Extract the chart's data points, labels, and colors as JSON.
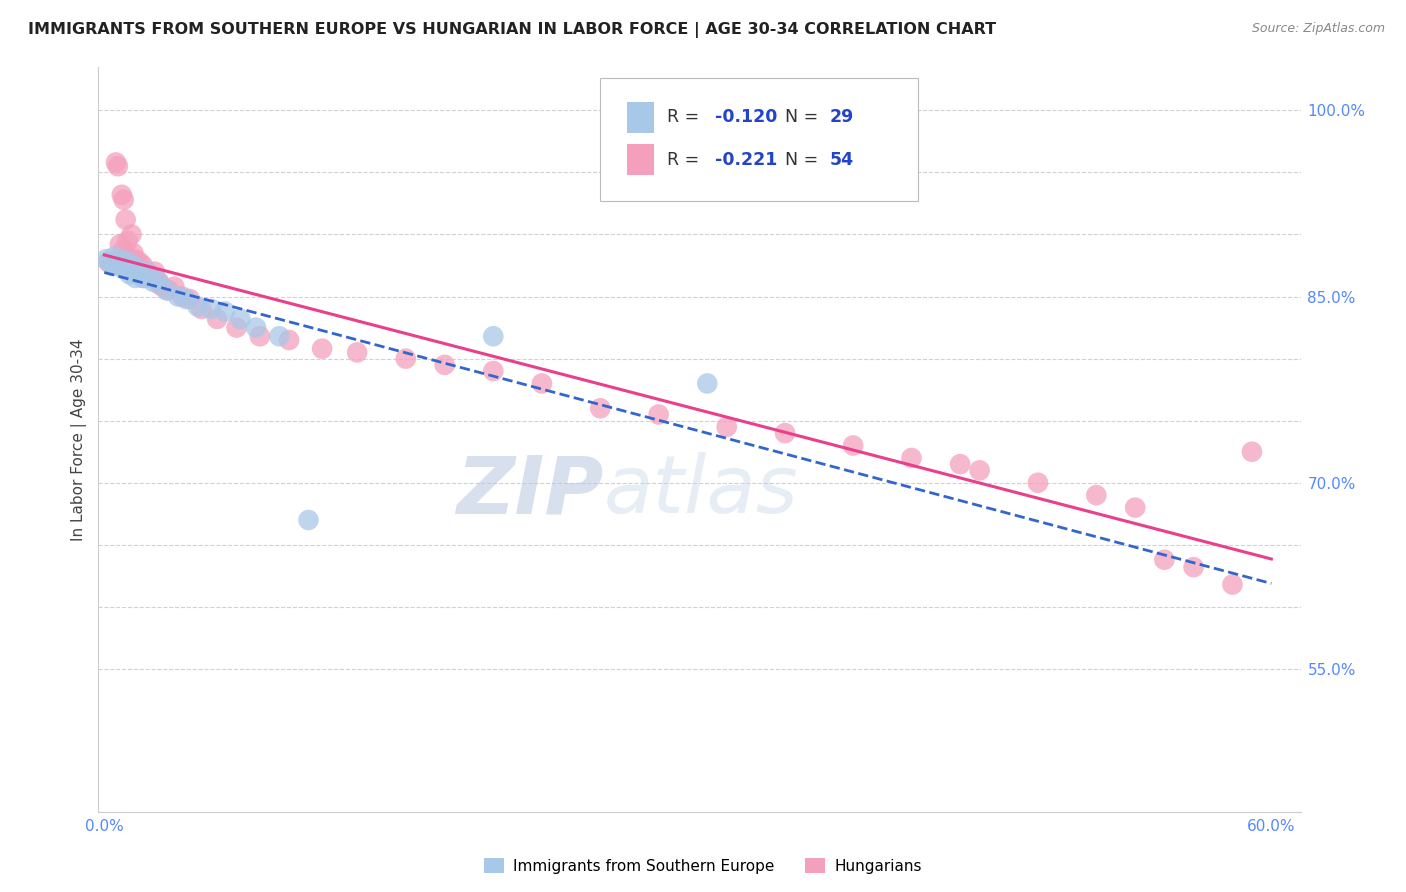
{
  "title": "IMMIGRANTS FROM SOUTHERN EUROPE VS HUNGARIAN IN LABOR FORCE | AGE 30-34 CORRELATION CHART",
  "source": "Source: ZipAtlas.com",
  "ylabel": "In Labor Force | Age 30-34",
  "xlim": [
    -0.003,
    0.615
  ],
  "ylim": [
    0.435,
    1.035
  ],
  "xtick_positions": [
    0.0,
    0.1,
    0.2,
    0.3,
    0.4,
    0.5,
    0.6
  ],
  "xticklabels": [
    "0.0%",
    "",
    "",
    "",
    "",
    "",
    "60.0%"
  ],
  "ytick_right_positions": [
    0.55,
    0.6,
    0.65,
    0.7,
    0.75,
    0.8,
    0.85,
    0.9,
    0.95,
    1.0
  ],
  "ytick_right_labels": [
    "55.0%",
    "",
    "",
    "70.0%",
    "",
    "",
    "85.0%",
    "",
    "",
    "100.0%"
  ],
  "blue_color": "#a8c8e8",
  "pink_color": "#f4a0bc",
  "blue_line_color": "#3366cc",
  "pink_line_color": "#e8408a",
  "blue_R": "-0.120",
  "blue_N": "29",
  "pink_R": "-0.221",
  "pink_N": "54",
  "watermark_zip": "ZIP",
  "watermark_atlas": "atlas",
  "blue_x": [
    0.001,
    0.003,
    0.005,
    0.006,
    0.008,
    0.009,
    0.01,
    0.011,
    0.012,
    0.013,
    0.015,
    0.016,
    0.018,
    0.02,
    0.022,
    0.025,
    0.028,
    0.032,
    0.038,
    0.042,
    0.048,
    0.055,
    0.062,
    0.07,
    0.078,
    0.09,
    0.105,
    0.2,
    0.31
  ],
  "blue_y": [
    0.88,
    0.877,
    0.882,
    0.875,
    0.88,
    0.875,
    0.872,
    0.876,
    0.878,
    0.868,
    0.875,
    0.865,
    0.87,
    0.865,
    0.87,
    0.862,
    0.862,
    0.855,
    0.85,
    0.848,
    0.842,
    0.84,
    0.838,
    0.832,
    0.825,
    0.818,
    0.67,
    0.818,
    0.78
  ],
  "pink_x": [
    0.002,
    0.004,
    0.006,
    0.007,
    0.009,
    0.01,
    0.011,
    0.012,
    0.014,
    0.015,
    0.016,
    0.018,
    0.02,
    0.022,
    0.024,
    0.026,
    0.028,
    0.03,
    0.033,
    0.036,
    0.04,
    0.044,
    0.05,
    0.058,
    0.068,
    0.08,
    0.095,
    0.112,
    0.13,
    0.155,
    0.175,
    0.2,
    0.225,
    0.255,
    0.285,
    0.32,
    0.35,
    0.385,
    0.415,
    0.44,
    0.45,
    0.48,
    0.51,
    0.53,
    0.545,
    0.56,
    0.58,
    0.008,
    0.01,
    0.012,
    0.014,
    0.02,
    0.028,
    0.59
  ],
  "pink_y": [
    0.878,
    0.875,
    0.958,
    0.955,
    0.932,
    0.928,
    0.912,
    0.895,
    0.9,
    0.885,
    0.88,
    0.878,
    0.875,
    0.87,
    0.865,
    0.87,
    0.862,
    0.858,
    0.855,
    0.858,
    0.85,
    0.848,
    0.84,
    0.832,
    0.825,
    0.818,
    0.815,
    0.808,
    0.805,
    0.8,
    0.795,
    0.79,
    0.78,
    0.76,
    0.755,
    0.745,
    0.74,
    0.73,
    0.72,
    0.715,
    0.71,
    0.7,
    0.69,
    0.68,
    0.638,
    0.632,
    0.618,
    0.892,
    0.888,
    0.882,
    0.875,
    0.865,
    0.86,
    0.725
  ]
}
